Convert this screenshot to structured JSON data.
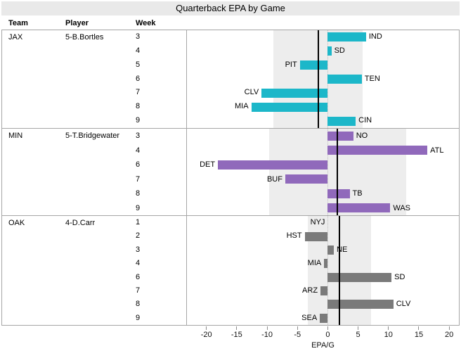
{
  "title": "Quarterback EPA by Game",
  "columns": {
    "team": "Team",
    "player": "Player",
    "week": "Week"
  },
  "axis": {
    "label": "EPA/G",
    "min": -23.2,
    "max": 21.6,
    "ticks": [
      -20,
      -15,
      -10,
      -5,
      0,
      5,
      10,
      15,
      20
    ]
  },
  "colors": {
    "jax_bar": "#1cb7c9",
    "min_bar": "#9069bb",
    "oak_bar": "#7a7a7a",
    "sd_band": "#ededed",
    "mean_line": "#000000",
    "zero_line": "#bdbdbd",
    "frame_border": "#a6a6a6",
    "title_bar_bg": "#e9e9e9"
  },
  "chart_data": {
    "type": "bar",
    "orientation": "horizontal",
    "title": "Quarterback EPA by Game",
    "xlabel": "EPA/G",
    "xlim": [
      -23.2,
      21.6
    ],
    "x_ticks": [
      -20,
      -15,
      -10,
      -5,
      0,
      5,
      10,
      15,
      20
    ],
    "grid": false,
    "legend": "none",
    "panels": [
      {
        "team": "JAX",
        "player": "5-B.Bortles",
        "bar_color": "#1cb7c9",
        "mean": -1.6,
        "sd_band": [
          -9.0,
          5.7
        ],
        "games": [
          {
            "week": 3,
            "opponent": "IND",
            "epa": 6.3
          },
          {
            "week": 4,
            "opponent": "SD",
            "epa": 0.6
          },
          {
            "week": 5,
            "opponent": "PIT",
            "epa": -4.6
          },
          {
            "week": 6,
            "opponent": "TEN",
            "epa": 5.6
          },
          {
            "week": 7,
            "opponent": "CLV",
            "epa": -10.9
          },
          {
            "week": 8,
            "opponent": "MIA",
            "epa": -12.6
          },
          {
            "week": 9,
            "opponent": "CIN",
            "epa": 4.6
          }
        ]
      },
      {
        "team": "MIN",
        "player": "5-T.Bridgewater",
        "bar_color": "#9069bb",
        "mean": 1.6,
        "sd_band": [
          -9.7,
          12.9
        ],
        "games": [
          {
            "week": 3,
            "opponent": "NO",
            "epa": 4.2
          },
          {
            "week": 4,
            "opponent": "ATL",
            "epa": 16.4
          },
          {
            "week": 6,
            "opponent": "DET",
            "epa": -18.1
          },
          {
            "week": 7,
            "opponent": "BUF",
            "epa": -7.0
          },
          {
            "week": 8,
            "opponent": "TB",
            "epa": 3.6
          },
          {
            "week": 9,
            "opponent": "WAS",
            "epa": 10.3
          }
        ]
      },
      {
        "team": "OAK",
        "player": "4-D.Carr",
        "bar_color": "#7a7a7a",
        "mean": 1.9,
        "sd_band": [
          -3.3,
          7.1
        ],
        "games": [
          {
            "week": 1,
            "opponent": "NYJ",
            "epa": 0.0
          },
          {
            "week": 2,
            "opponent": "HST",
            "epa": -3.8
          },
          {
            "week": 3,
            "opponent": "NE",
            "epa": 1.0
          },
          {
            "week": 4,
            "opponent": "MIA",
            "epa": -0.6
          },
          {
            "week": 6,
            "opponent": "SD",
            "epa": 10.5
          },
          {
            "week": 7,
            "opponent": "ARZ",
            "epa": -1.2
          },
          {
            "week": 8,
            "opponent": "CLV",
            "epa": 10.8
          },
          {
            "week": 9,
            "opponent": "SEA",
            "epa": -1.3
          }
        ]
      }
    ]
  }
}
